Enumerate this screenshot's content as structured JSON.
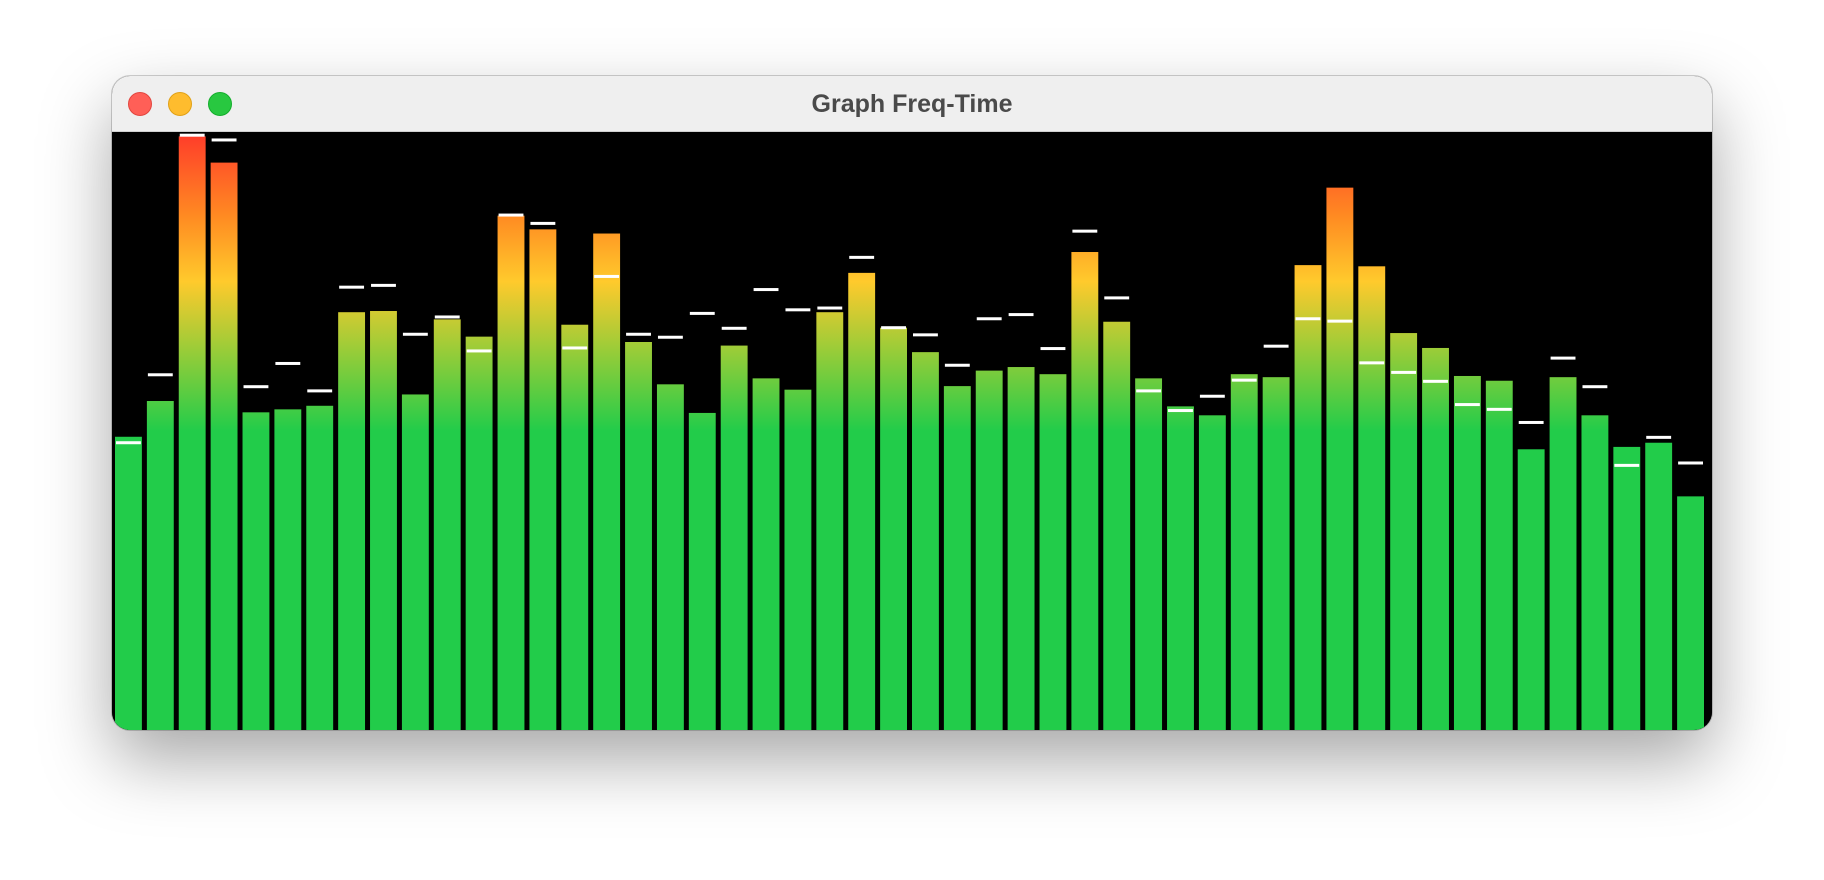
{
  "window": {
    "title": "Graph Freq-Time",
    "controls": [
      "close",
      "minimize",
      "zoom"
    ]
  },
  "chart_data": {
    "type": "bar",
    "ylim": [
      0,
      1
    ],
    "grid": false,
    "gradient_colors": [
      "#22cc4a",
      "#8ccc3a",
      "#ffca2c",
      "#ff8a22",
      "#ff3a2a"
    ],
    "peak_color": "#ffffff",
    "values": [
      0.492,
      0.552,
      0.996,
      0.952,
      0.533,
      0.538,
      0.544,
      0.701,
      0.703,
      0.563,
      0.689,
      0.66,
      0.863,
      0.84,
      0.68,
      0.833,
      0.651,
      0.58,
      0.532,
      0.645,
      0.59,
      0.571,
      0.701,
      0.767,
      0.675,
      0.634,
      0.577,
      0.603,
      0.609,
      0.597,
      0.802,
      0.685,
      0.59,
      0.543,
      0.528,
      0.597,
      0.592,
      0.78,
      0.91,
      0.778,
      0.666,
      0.641,
      0.594,
      0.586,
      0.471,
      0.592,
      0.528,
      0.475,
      0.482,
      0.392
    ],
    "peaks": [
      0.482,
      0.596,
      0.998,
      0.99,
      0.576,
      0.615,
      0.569,
      0.743,
      0.746,
      0.664,
      0.693,
      0.636,
      0.864,
      0.85,
      0.641,
      0.761,
      0.664,
      0.659,
      0.699,
      0.674,
      0.739,
      0.705,
      0.708,
      0.793,
      0.675,
      0.663,
      0.612,
      0.69,
      0.697,
      0.64,
      0.837,
      0.725,
      0.569,
      0.536,
      0.56,
      0.587,
      0.644,
      0.69,
      0.686,
      0.616,
      0.6,
      0.585,
      0.546,
      0.538,
      0.516,
      0.624,
      0.576,
      0.444,
      0.491,
      0.448
    ]
  }
}
